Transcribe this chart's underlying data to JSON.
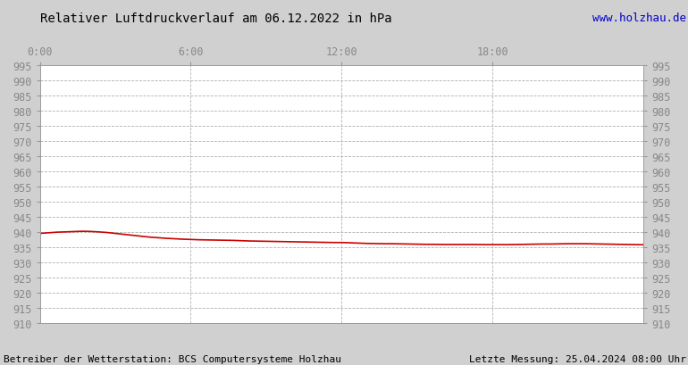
{
  "title": "Relativer Luftdruckverlauf am 06.12.2022 in hPa",
  "url_text": "www.holzhau.de",
  "footer_left": "Betreiber der Wetterstation: BCS Computersysteme Holzhau",
  "footer_right": "Letzte Messung: 25.04.2024 08:00 Uhr",
  "ylim": [
    910,
    995
  ],
  "ytick_step": 5,
  "xlim": [
    0,
    1440
  ],
  "xtick_positions": [
    0,
    360,
    720,
    1080
  ],
  "xtick_labels": [
    "0:00",
    "6:00",
    "12:00",
    "18:00"
  ],
  "line_color": "#cc0000",
  "line_width": 1.2,
  "background_color": "#d0d0d0",
  "plot_bg_color": "#ffffff",
  "grid_color": "#b0b0b0",
  "title_color": "#000000",
  "url_color": "#0000cc",
  "tick_label_color": "#888888",
  "footer_color": "#000000",
  "pressure_data": [
    [
      0,
      939.5
    ],
    [
      20,
      939.7
    ],
    [
      40,
      939.9
    ],
    [
      60,
      940.0
    ],
    [
      80,
      940.1
    ],
    [
      100,
      940.2
    ],
    [
      120,
      940.15
    ],
    [
      140,
      940.0
    ],
    [
      160,
      939.8
    ],
    [
      180,
      939.5
    ],
    [
      200,
      939.2
    ],
    [
      220,
      938.9
    ],
    [
      240,
      938.6
    ],
    [
      260,
      938.3
    ],
    [
      280,
      938.1
    ],
    [
      300,
      937.9
    ],
    [
      320,
      937.75
    ],
    [
      340,
      937.6
    ],
    [
      360,
      937.5
    ],
    [
      380,
      937.4
    ],
    [
      400,
      937.35
    ],
    [
      420,
      937.3
    ],
    [
      440,
      937.25
    ],
    [
      460,
      937.2
    ],
    [
      480,
      937.1
    ],
    [
      500,
      937.0
    ],
    [
      520,
      936.95
    ],
    [
      540,
      936.9
    ],
    [
      560,
      936.85
    ],
    [
      580,
      936.8
    ],
    [
      600,
      936.75
    ],
    [
      620,
      936.7
    ],
    [
      640,
      936.65
    ],
    [
      660,
      936.6
    ],
    [
      680,
      936.55
    ],
    [
      700,
      936.5
    ],
    [
      720,
      936.5
    ],
    [
      740,
      936.4
    ],
    [
      760,
      936.3
    ],
    [
      780,
      936.2
    ],
    [
      800,
      936.15
    ],
    [
      820,
      936.1
    ],
    [
      840,
      936.1
    ],
    [
      860,
      936.05
    ],
    [
      880,
      936.0
    ],
    [
      900,
      935.95
    ],
    [
      920,
      935.9
    ],
    [
      940,
      935.9
    ],
    [
      960,
      935.85
    ],
    [
      980,
      935.85
    ],
    [
      1000,
      935.85
    ],
    [
      1020,
      935.85
    ],
    [
      1040,
      935.85
    ],
    [
      1060,
      935.8
    ],
    [
      1080,
      935.8
    ],
    [
      1100,
      935.8
    ],
    [
      1120,
      935.8
    ],
    [
      1140,
      935.85
    ],
    [
      1160,
      935.9
    ],
    [
      1180,
      935.95
    ],
    [
      1200,
      936.0
    ],
    [
      1220,
      936.0
    ],
    [
      1240,
      936.05
    ],
    [
      1260,
      936.1
    ],
    [
      1280,
      936.1
    ],
    [
      1300,
      936.1
    ],
    [
      1320,
      936.05
    ],
    [
      1340,
      936.0
    ],
    [
      1360,
      935.95
    ],
    [
      1380,
      935.9
    ],
    [
      1400,
      935.85
    ],
    [
      1420,
      935.8
    ],
    [
      1440,
      935.75
    ]
  ]
}
